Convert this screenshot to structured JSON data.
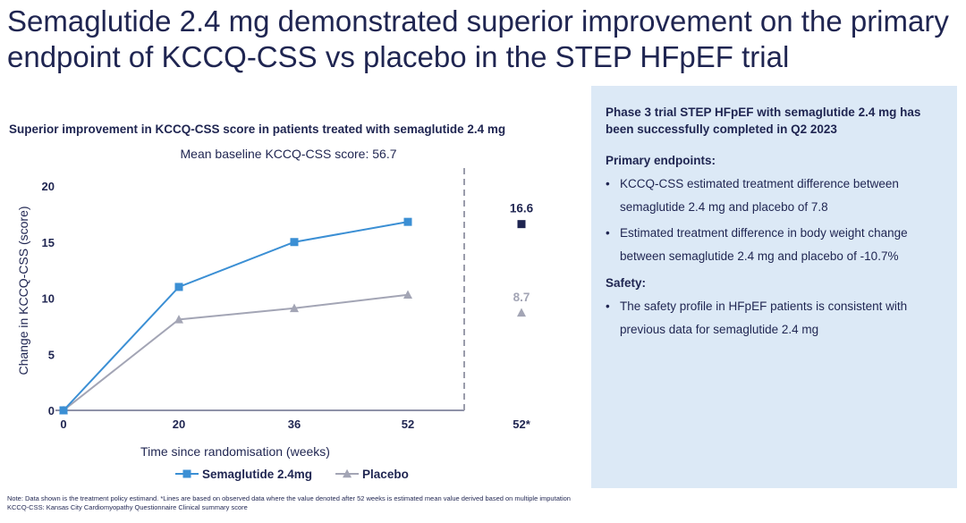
{
  "title": "Semaglutide 2.4 mg demonstrated superior improvement on the primary endpoint of KCCQ-CSS vs placebo in the STEP HFpEF trial",
  "chart_heading": "Superior improvement in KCCQ-CSS score in patients treated with semaglutide 2.4 mg",
  "chart_subheading": "Mean baseline KCCQ-CSS score: 56.7",
  "chart_data": {
    "type": "line",
    "title": "",
    "xlabel": "Time since randomisation (weeks)",
    "ylabel": "Change in KCCQ-CSS (score)",
    "x_categories": [
      "0",
      "20",
      "36",
      "52"
    ],
    "ylim": [
      0,
      20
    ],
    "y_ticks": [
      0,
      5,
      10,
      15,
      20
    ],
    "grid": false,
    "legend_position": "bottom-center",
    "series": [
      {
        "name": "Semaglutide 2.4mg",
        "marker": "square",
        "color": "#3b8fd4",
        "values": [
          0,
          11,
          15,
          16.8
        ]
      },
      {
        "name": "Placebo",
        "marker": "triangle",
        "color": "#a3a5b5",
        "values": [
          0,
          8.1,
          9.1,
          10.3
        ]
      }
    ],
    "estimated": {
      "x_label": "52*",
      "points": [
        {
          "series": "Semaglutide 2.4mg",
          "value": 16.6,
          "label": "16.6",
          "marker": "square",
          "color": "#1f2551"
        },
        {
          "series": "Placebo",
          "value": 8.7,
          "label": "8.7",
          "marker": "triangle",
          "color": "#a3a5b5"
        }
      ]
    }
  },
  "panel": {
    "heading": "Phase 3 trial STEP HFpEF with semaglutide 2.4 mg has been successfully completed in Q2 2023",
    "sections": [
      {
        "title": "Primary endpoints:",
        "bullets": [
          "KCCQ-CSS estimated treatment difference between semaglutide 2.4 mg and placebo of 7.8",
          "Estimated treatment difference in body weight change between semaglutide 2.4 mg and placebo of -10.7%"
        ]
      },
      {
        "title": "Safety:",
        "bullets": [
          "The safety profile in HFpEF patients is consistent with previous data for semaglutide 2.4 mg"
        ]
      }
    ]
  },
  "footnote": {
    "line1": "Note: Data shown is the treatment policy estimand. *Lines are based on observed data where the value denoted after 52 weeks is estimated mean value derived based on multiple imputation",
    "line2": "KCCQ-CSS: Kansas City Cardiomyopathy Questionnaire Clinical summary score"
  }
}
